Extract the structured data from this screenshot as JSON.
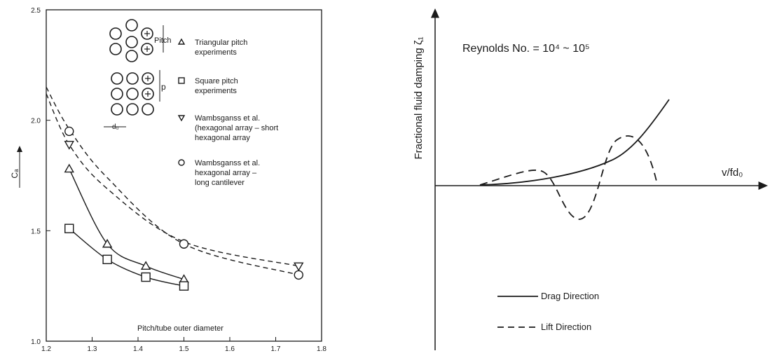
{
  "chart_data": [
    {
      "type": "scatter",
      "title": "",
      "xlabel": "Pitch/tube outer diameter",
      "ylabel": "Cₐ",
      "xlim": [
        1.2,
        1.8
      ],
      "ylim": [
        1.0,
        2.5
      ],
      "x_ticks": [
        "1.2",
        "1.3",
        "1.4",
        "1.5",
        "1.6",
        "1.7",
        "1.8"
      ],
      "y_ticks": [
        "1.0",
        "1.5",
        "2.0",
        "2.5"
      ],
      "grid": false,
      "legend": {
        "position": "top-right",
        "entries": [
          {
            "marker": "triangle",
            "symbol": "△",
            "lines": [
              "Triangular pitch",
              "experiments"
            ]
          },
          {
            "marker": "square",
            "symbol": "□",
            "lines": [
              "Square pitch",
              "experiments"
            ]
          },
          {
            "marker": "triangle-down",
            "symbol": "▽",
            "lines": [
              "Wambsganss et  al.",
              "(hexagonal array – short",
              "hexagonal array"
            ]
          },
          {
            "marker": "circle",
            "symbol": "○",
            "lines": [
              "Wambsganss et  al.",
              "hexagonal array –",
              "long cantilever"
            ]
          }
        ]
      },
      "inset_labels": {
        "pitch": "Pitch",
        "p": "p",
        "d": "d₀"
      },
      "series": [
        {
          "marker": "triangle",
          "style": "solid",
          "x": [
            1.25,
            1.333,
            1.417,
            1.5
          ],
          "y": [
            1.78,
            1.44,
            1.34,
            1.28
          ]
        },
        {
          "marker": "square",
          "style": "solid",
          "x": [
            1.25,
            1.333,
            1.417,
            1.5
          ],
          "y": [
            1.51,
            1.37,
            1.29,
            1.25
          ]
        },
        {
          "marker": "triangle-down",
          "style": "dashed",
          "x": [
            1.25,
            1.75
          ],
          "y": [
            1.89,
            1.34
          ]
        },
        {
          "marker": "circle",
          "style": "dashed",
          "x": [
            1.25,
            1.5,
            1.75
          ],
          "y": [
            1.95,
            1.44,
            1.3
          ]
        }
      ]
    },
    {
      "type": "line",
      "title": "Reynolds No. = 10⁴ ~ 10⁵",
      "xlabel": "v/fd₀",
      "ylabel": "Fractional fluid damping ζ₁",
      "axes_numbered": false,
      "legend": {
        "position": "bottom-center",
        "entries": [
          {
            "name": "Drag Direction",
            "style": "solid"
          },
          {
            "name": "Lift Direction",
            "style": "dashed"
          }
        ]
      },
      "series": [
        {
          "name": "Drag Direction",
          "style": "solid",
          "shape": "monotonically increasing from zero, slowly at first then rising steeply"
        },
        {
          "name": "Lift Direction",
          "style": "dashed",
          "shape": "small positive hump, then a dip below the axis, then a large positive peak, then falls back to zero"
        }
      ]
    }
  ]
}
